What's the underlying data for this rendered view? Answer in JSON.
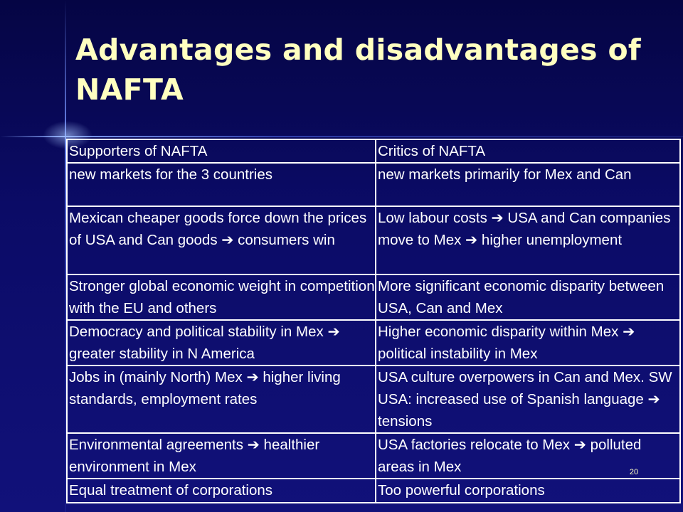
{
  "slide": {
    "title": "Advantages and disadvantages of NAFTA",
    "page_number": "20",
    "colors": {
      "background": "#0b0b66",
      "title": "#ffffc0",
      "text": "#ffffff",
      "table_border": "#ffffff"
    }
  },
  "table": {
    "headers": [
      "Supporters of NAFTA",
      "Critics of NAFTA"
    ],
    "rows": [
      [
        "new markets for the 3 countries",
        "new markets primarily for Mex and Can"
      ],
      [
        "Mexican cheaper goods force down the prices of USA and Can goods ➔ consumers win",
        "Low labour costs ➔ USA and Can companies move to Mex ➔ higher unemployment"
      ],
      [
        "Stronger global economic weight in competition with the EU and others",
        "More significant economic disparity between USA, Can and Mex"
      ],
      [
        "Democracy and political stability in Mex ➔ greater stability in N America",
        "Higher economic disparity within Mex ➔ political instability in Mex"
      ],
      [
        "Jobs in (mainly North) Mex ➔ higher living standards, employment rates",
        "USA culture overpowers in Can and Mex. SW USA: increased use of Spanish language ➔ tensions"
      ],
      [
        "Environmental agreements ➔ healthier environment in Mex",
        "USA factories relocate to Mex ➔ polluted areas in Mex"
      ],
      [
        "Equal treatment of corporations",
        "Too powerful corporations"
      ]
    ]
  }
}
